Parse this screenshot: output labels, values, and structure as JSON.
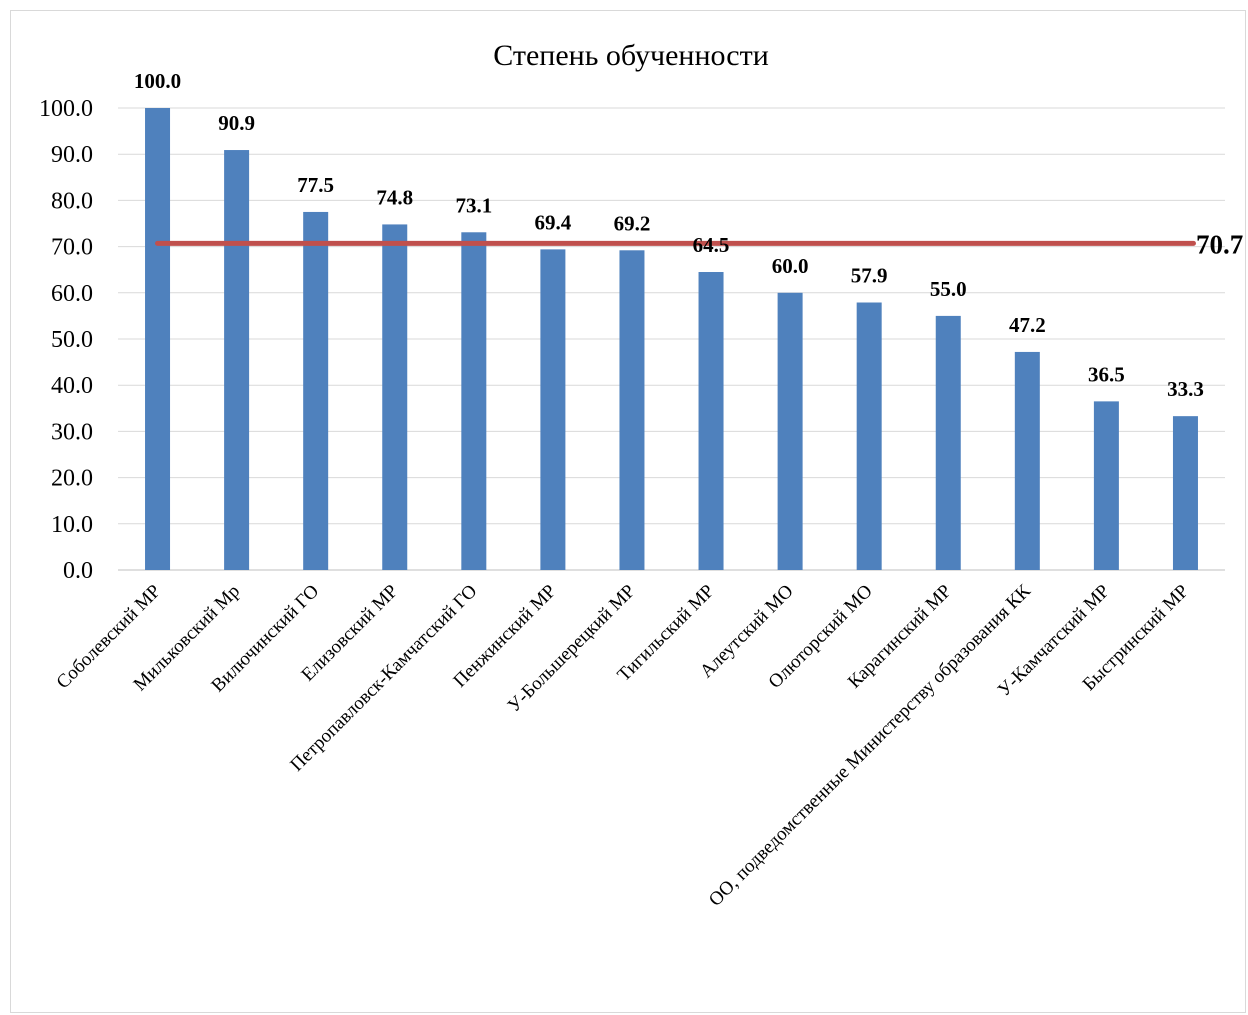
{
  "chart_data": {
    "type": "bar",
    "title": "Степень обученности",
    "xlabel": "",
    "ylabel": "",
    "ylim": [
      0,
      100
    ],
    "y_ticks": [
      "0.0",
      "10.0",
      "20.0",
      "30.0",
      "40.0",
      "50.0",
      "60.0",
      "70.0",
      "80.0",
      "90.0",
      "100.0"
    ],
    "grid": true,
    "legend": "none",
    "categories": [
      "Соболевский МР",
      "Мильковский Мр",
      "Вилючинский ГО",
      "Елизовский МР",
      "Петропавловск-Камчатский ГО",
      "Пенжинский МР",
      "У-Большерецкий МР",
      "Тигильский МР",
      "Алеутский МО",
      "Олюторский МО",
      "Карагинский МР",
      "ОО, подведомственные Министерству образования КК",
      "У-Камчатский МР",
      "Быстринский МР"
    ],
    "values": [
      100.0,
      90.9,
      77.5,
      74.8,
      73.1,
      69.4,
      69.2,
      64.5,
      60.0,
      57.9,
      55.0,
      47.2,
      36.5,
      33.3
    ],
    "value_labels": [
      "100.0",
      "90.9",
      "77.5",
      "74.8",
      "73.1",
      "69.4",
      "69.2",
      "64.5",
      "60.0",
      "57.9",
      "55.0",
      "47.2",
      "36.5",
      "33.3"
    ],
    "reference_line": {
      "value": 70.7,
      "label": "70.7"
    },
    "colors": {
      "bar": "#4f81bd",
      "reference_line": "#c0504d",
      "grid": "#d9d9d9",
      "axis": "#bfbfbf"
    }
  }
}
